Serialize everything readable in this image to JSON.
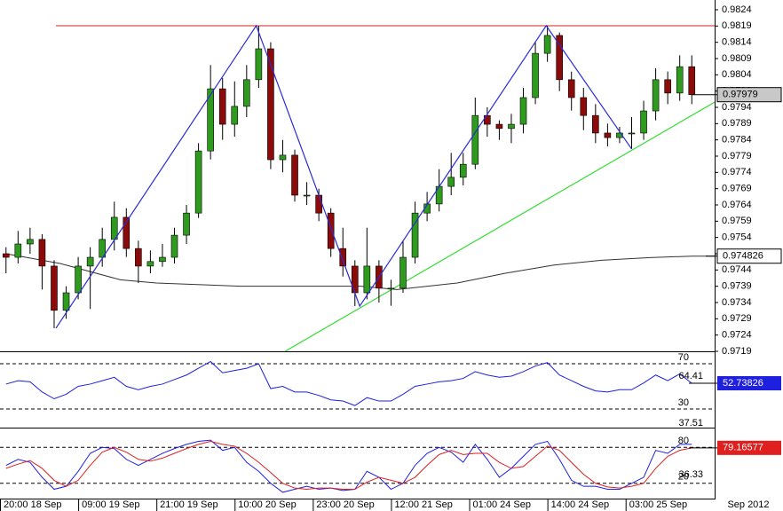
{
  "chart_data": [
    {
      "type": "candlestick",
      "x": [
        0.5,
        1.5,
        2.5,
        3.5,
        4.5,
        5.5,
        6.5,
        7.5,
        8.5,
        9.5,
        10.5,
        11.5,
        12.5,
        13.5,
        14.5,
        15.5,
        16.5,
        17.5,
        18.5,
        19.5,
        20.5,
        21.5,
        22.5,
        23.5,
        24.5,
        25.5,
        26.5,
        27.5,
        28.5,
        29.5,
        30.5,
        31.5,
        32.5,
        33.5,
        34.5,
        35.5,
        36.5,
        37.5,
        38.5,
        39.5,
        40.5,
        41.5,
        42.5,
        43.5,
        44.5,
        45.5,
        46.5,
        47.5,
        48.5,
        49.5,
        50.5,
        51.5,
        52.5,
        53.5,
        54.5,
        55.5,
        56.5,
        57.5
      ],
      "open": [
        0.9749,
        0.97479,
        0.9752,
        0.97534,
        0.97452,
        0.97316,
        0.9737,
        0.97452,
        0.97479,
        0.97534,
        0.97602,
        0.97506,
        0.97452,
        0.97466,
        0.97479,
        0.97547,
        0.97615,
        0.97806,
        0.97997,
        0.97888,
        0.97943,
        0.98025,
        0.9812,
        0.97779,
        0.97793,
        0.9767,
        0.9767,
        0.97615,
        0.97506,
        0.97452,
        0.9737,
        0.97452,
        0.97384,
        0.97384,
        0.97479,
        0.97615,
        0.97643,
        0.97697,
        0.97725,
        0.97765,
        0.97915,
        0.97888,
        0.97875,
        0.97888,
        0.9797,
        0.98106,
        0.98161,
        0.98025,
        0.9797,
        0.97915,
        0.97861,
        0.97847,
        0.97861,
        0.97861,
        0.97929,
        0.98025,
        0.97984,
        0.98065
      ],
      "high": [
        0.9751,
        0.9756,
        0.9757,
        0.9755,
        0.9747,
        0.9739,
        0.9748,
        0.9751,
        0.9757,
        0.9765,
        0.9763,
        0.9753,
        0.975,
        0.9752,
        0.9757,
        0.9764,
        0.9783,
        0.9807,
        0.9803,
        0.9802,
        0.9807,
        0.98191,
        0.9814,
        0.9784,
        0.9781,
        0.9771,
        0.9769,
        0.9763,
        0.9757,
        0.9747,
        0.9757,
        0.9747,
        0.9741,
        0.9753,
        0.9765,
        0.9768,
        0.9775,
        0.978,
        0.978,
        0.9797,
        0.9794,
        0.979,
        0.9792,
        0.98,
        0.9814,
        0.98191,
        0.9817,
        0.9805,
        0.98,
        0.9795,
        0.9789,
        0.9788,
        0.9791,
        0.9796,
        0.9806,
        0.9805,
        0.981,
        0.981
      ],
      "low": [
        0.9743,
        0.9746,
        0.9749,
        0.9738,
        0.97261,
        0.9729,
        0.9735,
        0.9732,
        0.9745,
        0.975,
        0.9748,
        0.974,
        0.9743,
        0.9745,
        0.9746,
        0.9752,
        0.976,
        0.9778,
        0.9784,
        0.9785,
        0.9791,
        0.98,
        0.9775,
        0.9774,
        0.9765,
        0.9764,
        0.9759,
        0.9748,
        0.9742,
        0.97329,
        0.9735,
        0.9734,
        0.9733,
        0.9737,
        0.9746,
        0.9759,
        0.9762,
        0.9767,
        0.977,
        0.9775,
        0.9785,
        0.9784,
        0.9783,
        0.9786,
        0.9795,
        0.9808,
        0.9799,
        0.9793,
        0.9787,
        0.9783,
        0.9782,
        0.9783,
        0.97812,
        0.9784,
        0.979,
        0.9795,
        0.9796,
        0.9795
      ],
      "close": [
        0.97479,
        0.9752,
        0.97534,
        0.97452,
        0.97316,
        0.9737,
        0.97452,
        0.97479,
        0.97534,
        0.97602,
        0.97506,
        0.97452,
        0.97466,
        0.97479,
        0.97547,
        0.97615,
        0.97806,
        0.97997,
        0.97888,
        0.97943,
        0.98025,
        0.9812,
        0.97779,
        0.97793,
        0.9767,
        0.9767,
        0.97615,
        0.97506,
        0.97452,
        0.9737,
        0.97452,
        0.97384,
        0.97384,
        0.97479,
        0.97615,
        0.97643,
        0.97697,
        0.97725,
        0.97765,
        0.97915,
        0.97888,
        0.97875,
        0.97888,
        0.9797,
        0.98106,
        0.98161,
        0.98025,
        0.9797,
        0.97915,
        0.97861,
        0.97847,
        0.97861,
        0.97861,
        0.97929,
        0.98025,
        0.97984,
        0.98065,
        0.97979
      ],
      "up_color": "#2e9b1f",
      "down_color": "#8b0a0a",
      "xlim": [
        0,
        59.4
      ],
      "ylim": [
        0.9719,
        0.9827
      ],
      "yticks": [
        0.9824,
        0.9819,
        0.9814,
        0.9809,
        0.9804,
        0.9799,
        0.9794,
        0.9789,
        0.9784,
        0.9779,
        0.9774,
        0.9769,
        0.9764,
        0.9759,
        0.9754,
        0.9749,
        0.9744,
        0.9739,
        0.9734,
        0.9729,
        0.9724,
        0.9719
      ],
      "moving_average": {
        "color": "#333333",
        "x": [
          0.5,
          5,
          10,
          13,
          20,
          30,
          33,
          38,
          42,
          46,
          50,
          54,
          57.5,
          59.4
        ],
        "values": [
          0.9749,
          0.9746,
          0.9741,
          0.974,
          0.9739,
          0.9739,
          0.9738,
          0.974,
          0.9743,
          0.97455,
          0.9747,
          0.97478,
          0.974826,
          0.974826
        ]
      },
      "zigzag": {
        "color": "#2b2bd6",
        "x": [
          4.65,
          21.3,
          29.9,
          45.4,
          52.5
        ],
        "values": [
          0.97261,
          0.98191,
          0.97329,
          0.98191,
          0.97812
        ]
      },
      "resistance": {
        "color": "#d62020",
        "x": [
          4.65,
          59.4
        ],
        "values": [
          0.98191,
          0.98191
        ]
      },
      "trendline": {
        "color": "#33dd33",
        "x": [
          23.7,
          59.4
        ],
        "values": [
          0.9719,
          0.97956
        ]
      },
      "last_price": 0.97979,
      "ma_price": 0.974826
    },
    {
      "type": "line",
      "x": [
        0.5,
        1.5,
        2.5,
        3.5,
        4.5,
        5.5,
        6.5,
        7.5,
        8.5,
        9.5,
        10.5,
        11.5,
        12.5,
        13.5,
        14.5,
        15.5,
        16.5,
        17.5,
        18.5,
        19.5,
        20.5,
        21.5,
        22.5,
        23.5,
        24.5,
        25.5,
        26.5,
        27.5,
        28.5,
        29.5,
        30.5,
        31.5,
        32.5,
        33.5,
        34.5,
        35.5,
        36.5,
        37.5,
        38.5,
        39.5,
        40.5,
        41.5,
        42.5,
        43.5,
        44.5,
        45.5,
        46.5,
        47.5,
        48.5,
        49.5,
        50.5,
        51.5,
        52.5,
        53.5,
        54.5,
        55.5,
        56.5,
        57.5
      ],
      "series": [
        {
          "color": "#1f1fe0",
          "values": [
            52,
            55,
            54,
            45,
            39,
            43,
            50,
            52,
            55,
            58,
            50,
            47,
            50,
            52,
            56,
            60,
            66,
            72,
            62,
            64,
            66,
            70,
            48,
            50,
            45,
            45,
            42,
            38,
            37,
            33,
            40,
            37,
            37,
            43,
            50,
            52,
            54,
            55,
            57,
            63,
            60,
            58,
            59,
            63,
            68,
            71,
            60,
            55,
            50,
            46,
            45,
            47,
            47,
            53,
            60,
            55,
            61,
            52.73826
          ]
        }
      ],
      "xlim": [
        0,
        59.4
      ],
      "ylim": [
        13.5,
        80.2
      ],
      "yticks": [
        70,
        30
      ],
      "current_value": 52.73826,
      "annotations": [
        64.41,
        37.51
      ]
    },
    {
      "type": "line",
      "x": [
        0.5,
        1.5,
        2.5,
        3.5,
        4.5,
        5.5,
        6.5,
        7.5,
        8.5,
        9.5,
        10.5,
        11.5,
        12.5,
        13.5,
        14.5,
        15.5,
        16.5,
        17.5,
        18.5,
        19.5,
        20.5,
        21.5,
        22.5,
        23.5,
        24.5,
        25.5,
        26.5,
        27.5,
        28.5,
        29.5,
        30.5,
        31.5,
        32.5,
        33.5,
        34.5,
        35.5,
        36.5,
        37.5,
        38.5,
        39.5,
        40.5,
        41.5,
        42.5,
        43.5,
        44.5,
        45.5,
        46.5,
        47.5,
        48.5,
        49.5,
        50.5,
        51.5,
        52.5,
        53.5,
        54.5,
        55.5,
        56.5,
        57.5
      ],
      "series": [
        {
          "color": "#1f1fe0",
          "values": [
            50,
            60,
            55,
            30,
            10,
            15,
            40,
            70,
            80,
            78,
            60,
            50,
            60,
            70,
            78,
            85,
            90,
            92,
            75,
            80,
            55,
            40,
            20,
            5,
            10,
            15,
            10,
            12,
            8,
            10,
            40,
            30,
            10,
            20,
            50,
            70,
            80,
            72,
            55,
            85,
            60,
            30,
            45,
            65,
            85,
            90,
            60,
            25,
            15,
            15,
            10,
            10,
            20,
            30,
            75,
            70,
            85,
            85
          ]
        },
        {
          "color": "#e01f1f",
          "values": [
            45,
            52,
            58,
            45,
            25,
            15,
            25,
            50,
            72,
            80,
            72,
            60,
            57,
            62,
            70,
            78,
            85,
            90,
            85,
            82,
            70,
            55,
            38,
            20,
            12,
            10,
            12,
            12,
            10,
            10,
            22,
            30,
            25,
            20,
            30,
            50,
            68,
            75,
            68,
            70,
            70,
            55,
            45,
            48,
            65,
            82,
            75,
            55,
            35,
            20,
            14,
            12,
            15,
            20,
            45,
            65,
            75,
            79.16577
          ]
        }
      ],
      "xlim": [
        0,
        59.4
      ],
      "ylim": [
        -5.5,
        111.5
      ],
      "yticks": [
        80,
        20
      ],
      "current_value": 79.16577,
      "annotations": [
        36.33
      ],
      "xticks": [
        {
          "value": 0,
          "label": "20:00 18 Sep"
        },
        {
          "value": 6.5,
          "label": "09:00 19 Sep"
        },
        {
          "value": 13,
          "label": "21:00 19 Sep"
        },
        {
          "value": 19.5,
          "label": "10:00 20 Sep"
        },
        {
          "value": 26,
          "label": "23:00 20 Sep"
        },
        {
          "value": 32.5,
          "label": "12:00 21 Sep"
        },
        {
          "value": 39,
          "label": "01:00 24 Sep"
        },
        {
          "value": 45.5,
          "label": "14:00 24 Sep"
        },
        {
          "value": 52,
          "label": "03:00 25 Sep"
        }
      ],
      "xlabel": "Sep 2012"
    }
  ]
}
